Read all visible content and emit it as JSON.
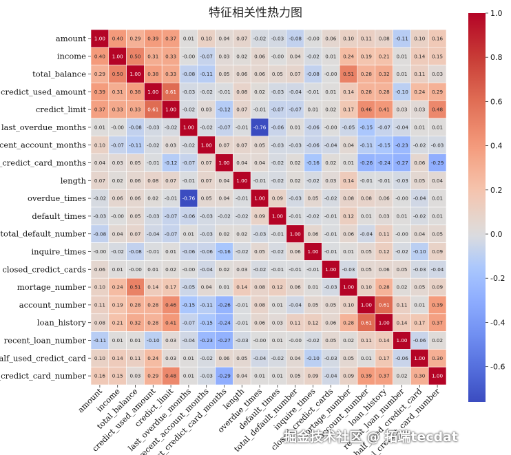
{
  "chart_data": {
    "type": "heatmap",
    "title": "特征相关性热力图",
    "labels": [
      "amount",
      "income",
      "total_balance",
      "credict_used_amount",
      "credict_limit",
      "last_overdue_months",
      "recent_account_months",
      "last_credict_card_months",
      "length",
      "overdue_times",
      "default_times",
      "total_default_number",
      "inquire_times",
      "closed_credict_cards",
      "mortage_number",
      "account_number",
      "loan_history",
      "recent_loan_number",
      "half_used_credict_card",
      "total_credict_card_number"
    ],
    "matrix": [
      [
        "1.00",
        "0.40",
        "0.29",
        "0.39",
        "0.37",
        "0.01",
        "0.10",
        "0.04",
        "0.07",
        "-0.02",
        "-0.03",
        "-0.08",
        "-0.00",
        "0.06",
        "0.10",
        "0.11",
        "0.08",
        "-0.11",
        "0.10",
        "0.16"
      ],
      [
        "0.40",
        "1.00",
        "0.50",
        "0.31",
        "0.33",
        "-0.00",
        "-0.07",
        "0.03",
        "0.02",
        "0.06",
        "-0.00",
        "0.04",
        "-0.02",
        "0.01",
        "0.24",
        "0.19",
        "0.21",
        "0.01",
        "0.14",
        "0.15"
      ],
      [
        "0.29",
        "0.50",
        "1.00",
        "0.38",
        "0.33",
        "-0.08",
        "-0.11",
        "0.05",
        "0.06",
        "0.06",
        "0.05",
        "0.07",
        "-0.08",
        "-0.00",
        "0.51",
        "0.28",
        "0.32",
        "0.01",
        "0.11",
        "0.03"
      ],
      [
        "0.39",
        "0.31",
        "0.38",
        "1.00",
        "0.61",
        "-0.03",
        "-0.02",
        "-0.01",
        "0.08",
        "0.02",
        "-0.03",
        "-0.04",
        "-0.01",
        "0.01",
        "0.14",
        "0.28",
        "0.28",
        "-0.10",
        "0.24",
        "0.29"
      ],
      [
        "0.37",
        "0.33",
        "0.33",
        "0.61",
        "1.00",
        "-0.02",
        "0.03",
        "-0.12",
        "0.07",
        "-0.01",
        "-0.07",
        "-0.07",
        "0.01",
        "0.02",
        "0.17",
        "0.46",
        "0.41",
        "0.03",
        "0.03",
        "0.48"
      ],
      [
        "0.01",
        "-0.00",
        "-0.08",
        "-0.03",
        "-0.02",
        "1.00",
        "-0.02",
        "-0.07",
        "-0.01",
        "-0.76",
        "-0.06",
        "0.01",
        "-0.06",
        "-0.00",
        "-0.05",
        "-0.15",
        "-0.07",
        "-0.04",
        "0.01",
        "0.01"
      ],
      [
        "0.10",
        "-0.07",
        "-0.11",
        "-0.02",
        "0.03",
        "-0.02",
        "1.00",
        "0.07",
        "0.07",
        "0.05",
        "-0.03",
        "-0.03",
        "-0.06",
        "-0.04",
        "0.04",
        "-0.11",
        "-0.15",
        "-0.23",
        "-0.02",
        "-0.03"
      ],
      [
        "0.04",
        "0.03",
        "0.05",
        "-0.01",
        "-0.12",
        "-0.07",
        "0.07",
        "1.00",
        "0.04",
        "0.04",
        "-0.02",
        "0.02",
        "-0.16",
        "0.02",
        "0.01",
        "-0.26",
        "-0.24",
        "-0.27",
        "0.06",
        "-0.29"
      ],
      [
        "0.07",
        "0.02",
        "0.06",
        "0.08",
        "0.07",
        "-0.01",
        "0.07",
        "0.04",
        "1.00",
        "-0.01",
        "-0.02",
        "0.02",
        "-0.02",
        "0.03",
        "0.14",
        "-0.01",
        "-0.01",
        "-0.03",
        "0.05",
        "0.04"
      ],
      [
        "-0.02",
        "0.06",
        "0.06",
        "0.02",
        "-0.01",
        "-0.76",
        "0.05",
        "0.04",
        "-0.01",
        "1.00",
        "0.09",
        "-0.03",
        "0.05",
        "-0.02",
        "0.08",
        "0.08",
        "0.06",
        "-0.00",
        "-0.04",
        "0.01"
      ],
      [
        "-0.03",
        "-0.00",
        "0.05",
        "-0.03",
        "-0.07",
        "-0.06",
        "-0.03",
        "-0.02",
        "-0.02",
        "0.09",
        "1.00",
        "-0.01",
        "-0.02",
        "-0.01",
        "0.12",
        "0.01",
        "0.03",
        "0.01",
        "-0.02",
        "0.01"
      ],
      [
        "-0.08",
        "0.04",
        "0.07",
        "-0.04",
        "-0.07",
        "0.01",
        "-0.03",
        "0.02",
        "0.02",
        "-0.03",
        "-0.01",
        "1.00",
        "0.06",
        "-0.01",
        "0.06",
        "-0.04",
        "0.11",
        "-0.00",
        "0.04",
        "0.05"
      ],
      [
        "-0.00",
        "-0.02",
        "-0.08",
        "-0.01",
        "0.01",
        "-0.06",
        "-0.06",
        "-0.16",
        "-0.02",
        "0.05",
        "-0.02",
        "0.06",
        "1.00",
        "-0.01",
        "0.01",
        "0.05",
        "0.12",
        "-0.02",
        "-0.10",
        "0.09"
      ],
      [
        "0.06",
        "0.01",
        "-0.00",
        "0.01",
        "0.02",
        "-0.00",
        "-0.04",
        "0.02",
        "0.03",
        "-0.02",
        "-0.01",
        "-0.01",
        "-0.01",
        "1.00",
        "-0.03",
        "0.05",
        "0.06",
        "0.05",
        "-0.03",
        "-0.04"
      ],
      [
        "0.10",
        "0.24",
        "0.51",
        "0.14",
        "0.17",
        "-0.05",
        "0.04",
        "0.01",
        "0.14",
        "0.08",
        "0.12",
        "0.06",
        "0.01",
        "-0.03",
        "1.00",
        "0.10",
        "0.28",
        "0.02",
        "0.05",
        "0.09"
      ],
      [
        "0.11",
        "0.19",
        "0.28",
        "0.28",
        "0.46",
        "-0.15",
        "-0.11",
        "-0.26",
        "-0.01",
        "0.08",
        "0.01",
        "-0.04",
        "0.05",
        "0.05",
        "0.10",
        "1.00",
        "0.61",
        "0.11",
        "0.01",
        "0.39"
      ],
      [
        "0.08",
        "0.21",
        "0.32",
        "0.28",
        "0.41",
        "-0.07",
        "-0.15",
        "-0.24",
        "-0.01",
        "0.06",
        "0.03",
        "0.11",
        "0.12",
        "0.06",
        "0.28",
        "0.61",
        "1.00",
        "0.14",
        "0.17",
        "0.37"
      ],
      [
        "-0.11",
        "0.01",
        "0.01",
        "-0.10",
        "0.03",
        "-0.04",
        "-0.23",
        "-0.27",
        "-0.03",
        "-0.00",
        "0.01",
        "-0.00",
        "-0.02",
        "0.05",
        "0.02",
        "0.11",
        "0.14",
        "1.00",
        "-0.06",
        "0.02"
      ],
      [
        "0.10",
        "0.14",
        "0.11",
        "0.24",
        "0.03",
        "0.01",
        "-0.02",
        "0.06",
        "0.05",
        "-0.04",
        "-0.02",
        "0.04",
        "-0.10",
        "-0.03",
        "0.05",
        "0.01",
        "0.17",
        "-0.06",
        "1.00",
        "0.30"
      ],
      [
        "0.16",
        "0.15",
        "0.03",
        "0.29",
        "0.48",
        "0.01",
        "-0.03",
        "-0.29",
        "0.04",
        "0.01",
        "0.01",
        "0.05",
        "0.09",
        "-0.04",
        "0.09",
        "0.39",
        "0.37",
        "0.02",
        "0.30",
        "1.00"
      ]
    ],
    "colorbar": {
      "range": [
        -0.76,
        1.0
      ],
      "ticks": [
        "1.0",
        "0.8",
        "0.6",
        "0.4",
        "0.2",
        "0.0",
        "-0.2",
        "-0.4",
        "-0.6"
      ],
      "colormap": "coolwarm",
      "colors": {
        "low": "#3b4cc0",
        "mid": "#dddddd",
        "high": "#b40426"
      }
    }
  },
  "watermark": "掘金技术社区 @ 拓端tecdat"
}
